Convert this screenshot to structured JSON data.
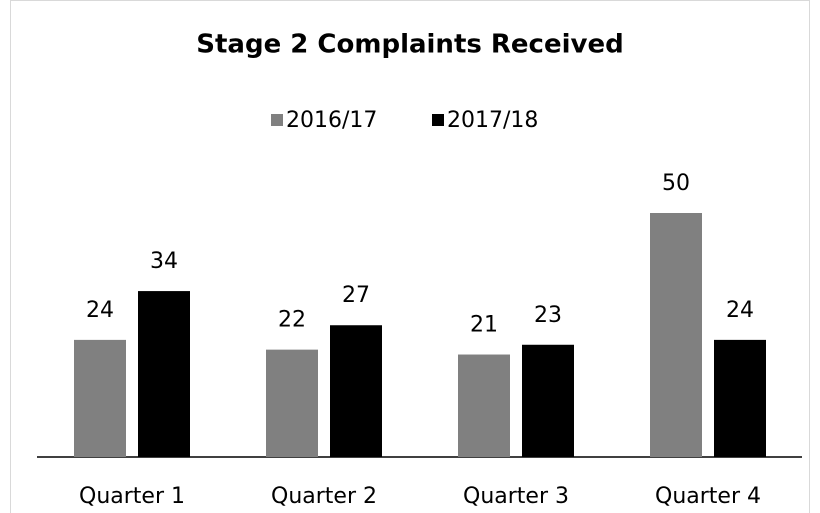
{
  "chart_data": {
    "type": "bar",
    "title": "Stage 2 Complaints Received",
    "categories": [
      "Quarter 1",
      "Quarter 2",
      "Quarter 3",
      "Quarter 4"
    ],
    "series": [
      {
        "name": "2016/17",
        "color": "#808080",
        "values": [
          24,
          22,
          21,
          50
        ]
      },
      {
        "name": "2017/18",
        "color": "#000000",
        "values": [
          34,
          27,
          23,
          24
        ]
      }
    ],
    "legend": "top"
  }
}
